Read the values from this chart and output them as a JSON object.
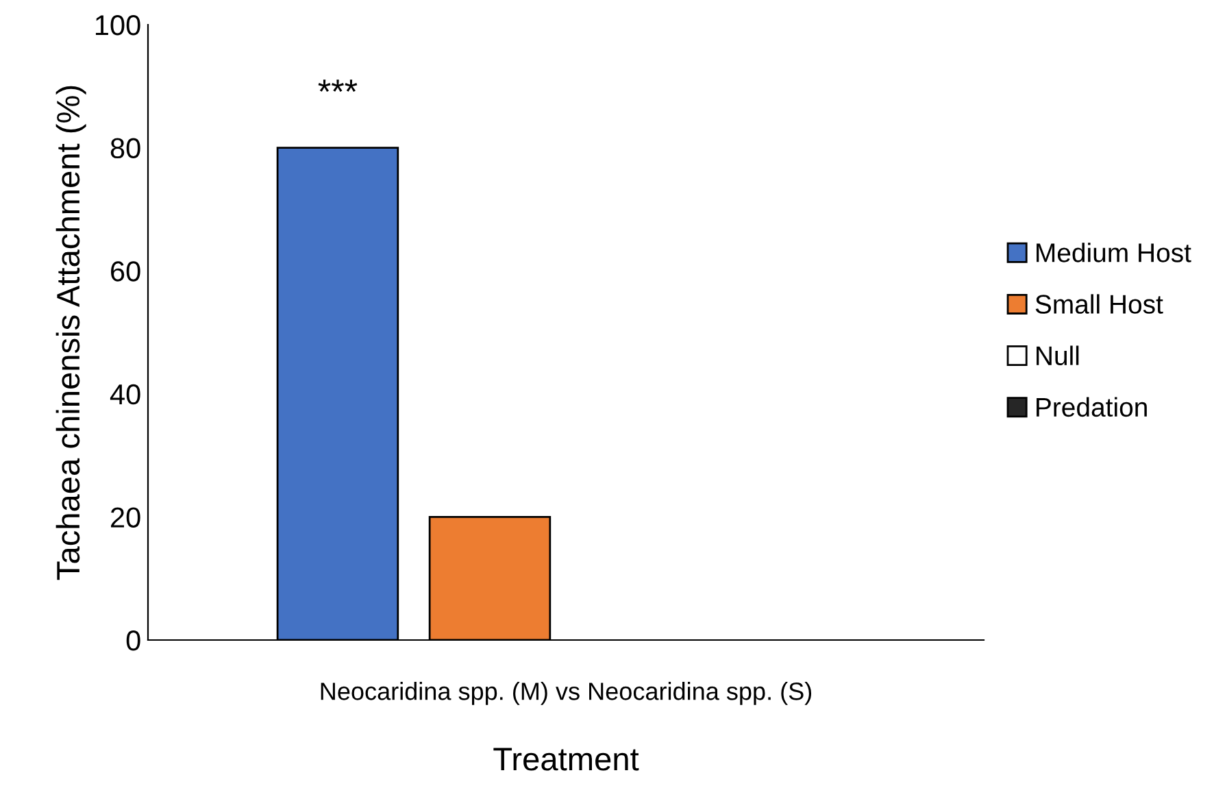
{
  "chart_data": {
    "type": "bar",
    "xlabel": "Treatment",
    "ylabel": "Tachaea chinensis Attachment (%)",
    "categories": [
      "Neocaridina spp. (M) vs Neocaridina spp. (S)"
    ],
    "series": [
      {
        "name": "Medium Host",
        "color": "#4472c4",
        "values": [
          80
        ]
      },
      {
        "name": "Small Host",
        "color": "#ed7d31",
        "values": [
          20
        ]
      },
      {
        "name": "Null",
        "color": "#ffffff",
        "values": [
          0
        ]
      },
      {
        "name": "Predation",
        "color": "#262626",
        "values": [
          0
        ]
      }
    ],
    "annotations": [
      "***"
    ],
    "ylim": [
      0,
      100
    ],
    "yticks": [
      0,
      20,
      40,
      60,
      80,
      100
    ],
    "grid": false,
    "legend": "right"
  }
}
